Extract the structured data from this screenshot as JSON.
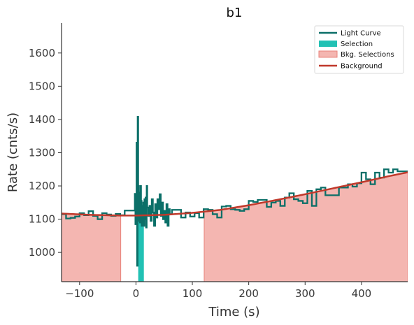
{
  "chart_data": {
    "type": "line",
    "title": "b1",
    "xlabel": "Time (s)",
    "ylabel": "Rate (cnts/s)",
    "xlim": [
      -132,
      482
    ],
    "ylim": [
      912,
      1690
    ],
    "xticks": [
      -100,
      0,
      100,
      200,
      300,
      400
    ],
    "yticks": [
      1000,
      1100,
      1200,
      1300,
      1400,
      1500,
      1600
    ],
    "grid": false,
    "legend_position": "top-right",
    "legend": [
      {
        "label": "Light Curve",
        "kind": "line",
        "color": "#0b6f68"
      },
      {
        "label": "Selection",
        "kind": "patch",
        "color": "#22c1b4"
      },
      {
        "label": "Bkg. Selections",
        "kind": "patch",
        "color": "#f4b6b1"
      },
      {
        "label": "Background",
        "kind": "line",
        "color": "#c0392b"
      }
    ],
    "colors": {
      "light_curve": "#0b6f68",
      "selection": "#22c1b4",
      "bkg_fill": "#f4b6b1",
      "bkg_edge": "#e8827a",
      "background": "#c0392b"
    },
    "bkg_selections": [
      [
        -132,
        -27
      ],
      [
        121,
        482
      ]
    ],
    "selection": [
      4,
      14
    ],
    "background_model": {
      "x": [
        -132,
        -80,
        -30,
        0,
        50,
        100,
        150,
        200,
        250,
        300,
        350,
        400,
        450,
        482
      ],
      "y": [
        1117,
        1113,
        1111,
        1111,
        1113,
        1119,
        1128,
        1142,
        1158,
        1175,
        1193,
        1211,
        1230,
        1241
      ]
    },
    "light_curve": {
      "x": [
        -132,
        -124,
        -116,
        -108,
        -100,
        -92,
        -84,
        -76,
        -68,
        -60,
        -52,
        -44,
        -36,
        -28,
        -20,
        -12,
        -4,
        -2,
        -1,
        0,
        1,
        2,
        3,
        4,
        5,
        6,
        7,
        8,
        9,
        10,
        11,
        12,
        13,
        14,
        15,
        16,
        17,
        18,
        19,
        20,
        22,
        24,
        26,
        28,
        30,
        32,
        34,
        36,
        38,
        40,
        42,
        44,
        46,
        48,
        50,
        52,
        54,
        56,
        58,
        60,
        64,
        72,
        80,
        88,
        96,
        104,
        112,
        120,
        128,
        136,
        144,
        152,
        160,
        168,
        176,
        184,
        192,
        200,
        208,
        216,
        224,
        232,
        240,
        248,
        256,
        264,
        272,
        280,
        288,
        296,
        304,
        312,
        320,
        328,
        336,
        344,
        352,
        360,
        368,
        376,
        384,
        392,
        400,
        408,
        416,
        424,
        432,
        440,
        448,
        456,
        464,
        472
      ],
      "y": [
        1115,
        1102,
        1104,
        1108,
        1118,
        1112,
        1124,
        1110,
        1100,
        1118,
        1114,
        1110,
        1116,
        1112,
        1126,
        1126,
        1126,
        1176,
        1085,
        1140,
        1330,
        960,
        1408,
        1200,
        1095,
        1180,
        1090,
        1200,
        1155,
        1080,
        1140,
        1090,
        1150,
        1080,
        1160,
        1100,
        1165,
        1075,
        1200,
        1135,
        1110,
        1140,
        1095,
        1160,
        1120,
        1080,
        1145,
        1105,
        1160,
        1130,
        1175,
        1110,
        1150,
        1100,
        1125,
        1090,
        1145,
        1080,
        1130,
        1115,
        1128,
        1128,
        1105,
        1120,
        1108,
        1118,
        1105,
        1130,
        1128,
        1115,
        1105,
        1138,
        1140,
        1130,
        1128,
        1125,
        1130,
        1155,
        1152,
        1158,
        1158,
        1137,
        1150,
        1155,
        1140,
        1165,
        1178,
        1160,
        1155,
        1148,
        1185,
        1140,
        1190,
        1195,
        1172,
        1172,
        1172,
        1195,
        1195,
        1205,
        1198,
        1208,
        1240,
        1220,
        1205,
        1240,
        1225,
        1250,
        1240,
        1250,
        1244,
        1244
      ]
    }
  }
}
